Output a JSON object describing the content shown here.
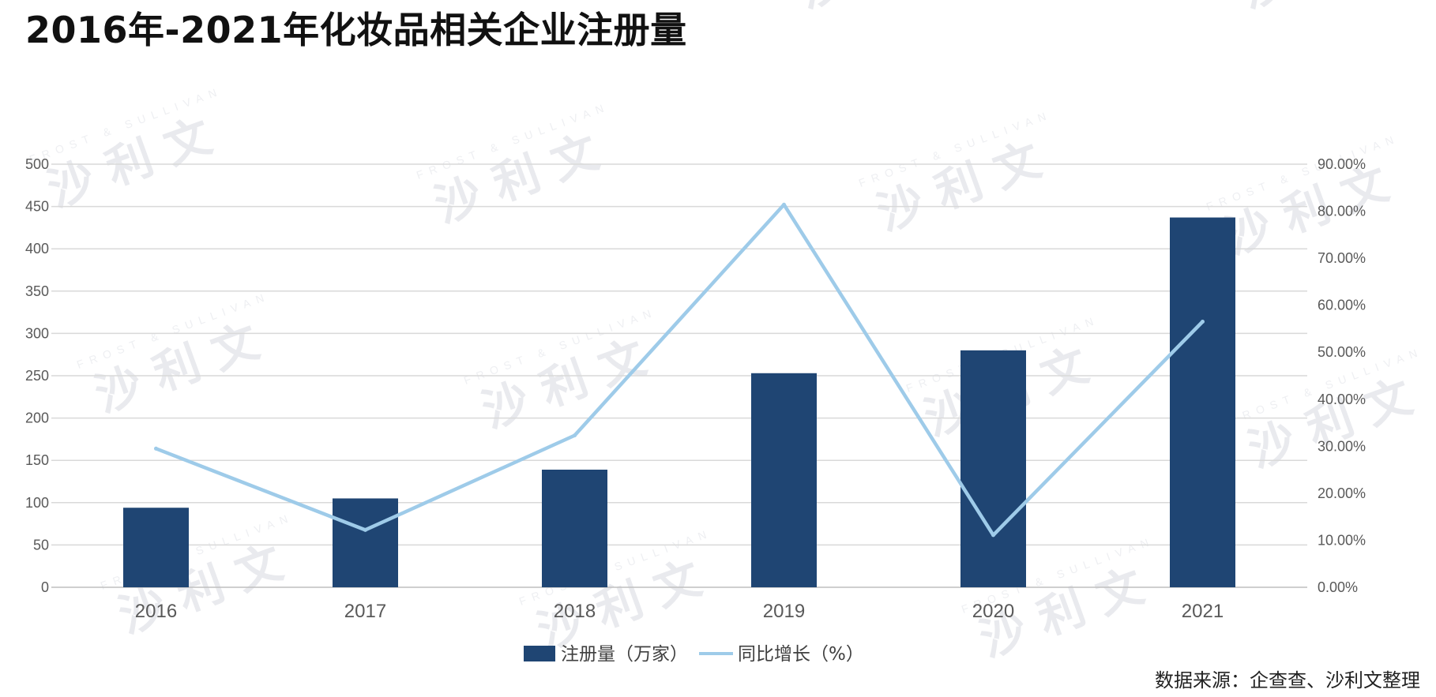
{
  "title": "2016年-2021年化妆品相关企业注册量",
  "source": "数据来源：企查查、沙利文整理",
  "watermark": {
    "main": "沙 利 文",
    "sub": "FROST & SULLIVAN"
  },
  "colors": {
    "bar": "#1f4573",
    "line": "#9ecbe9",
    "grid": "#d9d9d9",
    "axis": "#bfbfbf"
  },
  "chart_data": {
    "type": "bar",
    "categories": [
      "2016",
      "2017",
      "2018",
      "2019",
      "2020",
      "2021"
    ],
    "series": [
      {
        "name": "注册量（万家）",
        "type": "bar",
        "axis": "left",
        "values": [
          94,
          105,
          139,
          253,
          280,
          437
        ]
      },
      {
        "name": "同比增长（%）",
        "type": "line",
        "axis": "right",
        "values": [
          29.5,
          12.2,
          32.3,
          81.4,
          11.1,
          56.5
        ]
      }
    ],
    "y_left": {
      "min": 0,
      "max": 500,
      "step": 50,
      "ticks": [
        "0",
        "50",
        "100",
        "150",
        "200",
        "250",
        "300",
        "350",
        "400",
        "450",
        "500"
      ]
    },
    "y_right": {
      "min": 0,
      "max": 90,
      "step": 10,
      "ticks": [
        "0.00%",
        "10.00%",
        "20.00%",
        "30.00%",
        "40.00%",
        "50.00%",
        "60.00%",
        "70.00%",
        "80.00%",
        "90.00%"
      ]
    },
    "grid": true,
    "legend": "bottom-center"
  }
}
